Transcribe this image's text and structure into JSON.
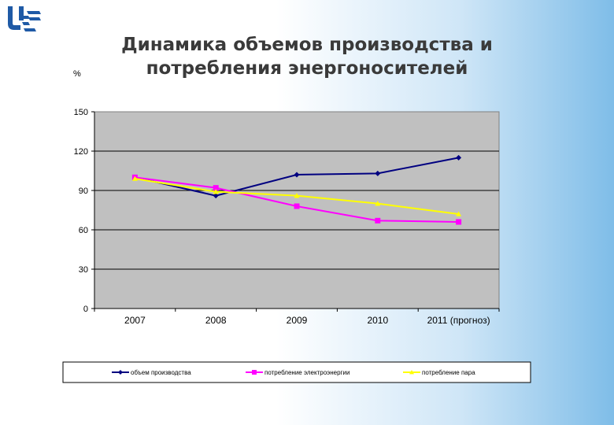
{
  "slide": {
    "title_line1": "Динамика объемов производства и",
    "title_line2": "потребления энергоносителей",
    "unit": "%"
  },
  "logo": {
    "icon": "uk-logo-icon",
    "color": "#1f5aa6"
  },
  "chart_data": {
    "type": "line",
    "title": "Динамика объемов производства и потребления энергоносителей",
    "ylabel": "%",
    "xlabel": "",
    "categories": [
      "2007",
      "2008",
      "2009",
      "2010",
      "2011 (прогноз)"
    ],
    "ylim": [
      0,
      150
    ],
    "yticks": [
      0,
      30,
      60,
      90,
      120,
      150
    ],
    "grid": true,
    "legend": "bottom",
    "plot_background": "#c0c0c0",
    "series": [
      {
        "name": "объем производства",
        "color": "#000080",
        "marker": "diamond",
        "values": [
          100,
          86,
          102,
          103,
          115
        ]
      },
      {
        "name": "потребление электроэнергии",
        "color": "#ff00ff",
        "marker": "square",
        "values": [
          100,
          92,
          78,
          67,
          66
        ]
      },
      {
        "name": "потребление пара",
        "color": "#ffff00",
        "marker": "triangle",
        "values": [
          99,
          89,
          86,
          80,
          72
        ]
      }
    ]
  }
}
